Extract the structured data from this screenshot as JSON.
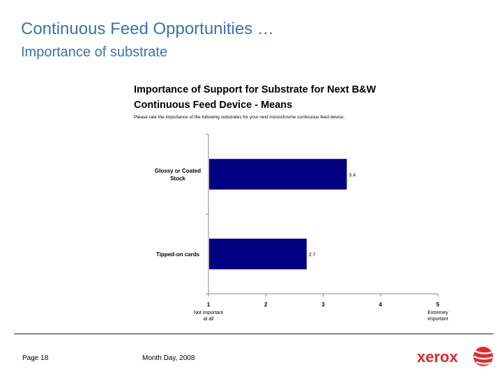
{
  "slide": {
    "title": "Continuous Feed Opportunities …",
    "subtitle": "Importance of substrate"
  },
  "chart_data": {
    "type": "bar",
    "orientation": "horizontal",
    "title_line1": "Importance of Support for Substrate for Next B&W",
    "title_line2": "Continuous Feed Device - Means",
    "subtitle": "Please rate the importance of the following substrates for your next monochrome continuous feed device.",
    "categories": [
      {
        "lines": [
          "Glossy or Coated",
          "Stock"
        ],
        "value": 3.4,
        "label": "3.4"
      },
      {
        "lines": [
          "Tipped-on cards"
        ],
        "value": 2.7,
        "label": "2.7"
      }
    ],
    "xlim": [
      1,
      5
    ],
    "ticks": [
      "1",
      "2",
      "3",
      "4",
      "5"
    ],
    "low_anchor": [
      "Not important",
      "at all"
    ],
    "high_anchor": [
      "Extremey",
      "important"
    ],
    "bar_color": "#000080"
  },
  "footer": {
    "page": "Page 18",
    "date": "Month Day, 2008",
    "logo_text": "xerox",
    "brand_color": "#e8262b"
  }
}
